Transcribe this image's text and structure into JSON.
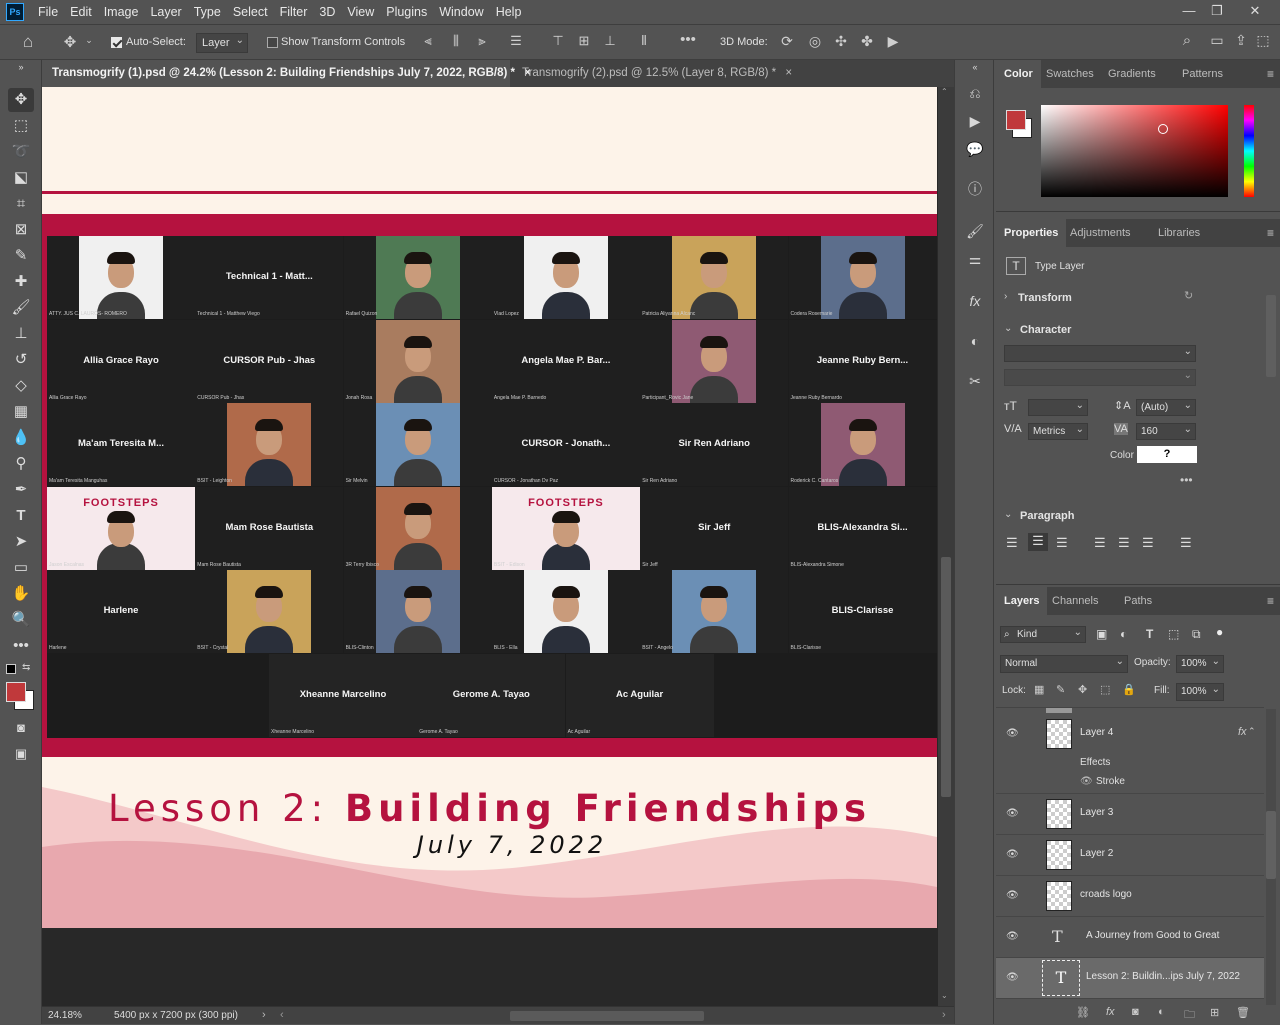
{
  "menubar": {
    "logo": "Ps",
    "items": [
      "File",
      "Edit",
      "Image",
      "Layer",
      "Type",
      "Select",
      "Filter",
      "3D",
      "View",
      "Plugins",
      "Window",
      "Help"
    ]
  },
  "options": {
    "auto_select_label": "Auto-Select:",
    "auto_select_value": "Layer",
    "transform_label": "Show Transform Controls",
    "mode_3d_label": "3D Mode:"
  },
  "tabs": [
    {
      "label": "Transmogrify (1).psd @ 24.2% (Lesson 2: Building Friendships July 7, 2022, RGB/8) *",
      "close": "×"
    },
    {
      "label": "Transmogrify (2).psd @ 12.5% (Layer 8, RGB/8) *",
      "close": "×"
    }
  ],
  "document": {
    "title_part1": "Lesson 2: ",
    "title_part2": "Building Friendships",
    "date": "July 7, 2022",
    "accent_color": "#b5123f",
    "tiles": [
      {
        "name": "",
        "cap": "ATTY. JUS C. LAUROS- ROMERO",
        "kind": "photo"
      },
      {
        "name": "Technical 1 - Matt...",
        "cap": "Technical 1 - Matthew Viego",
        "kind": "text"
      },
      {
        "name": "",
        "cap": "Rafael Quizon",
        "kind": "photo"
      },
      {
        "name": "",
        "cap": "Vlad Lopez",
        "kind": "photo"
      },
      {
        "name": "",
        "cap": "Patricia Aliyanna Alcanc",
        "kind": "photo"
      },
      {
        "name": "",
        "cap": "Codera Rosemarie",
        "kind": "photo"
      },
      {
        "name": "Allia Grace Rayo",
        "cap": "Allia Grace Rayo",
        "kind": "text"
      },
      {
        "name": "CURSOR Pub - Jhas",
        "cap": "CURSOR Pub - Jhas",
        "kind": "text"
      },
      {
        "name": "",
        "cap": "Jonah Rosa",
        "kind": "photo"
      },
      {
        "name": "Angela Mae P. Bar...",
        "cap": "Angela Mae P. Barnedo",
        "kind": "text"
      },
      {
        "name": "",
        "cap": "Participant_Rovic Jane",
        "kind": "photo"
      },
      {
        "name": "Jeanne Ruby Bern...",
        "cap": "Jeanne Ruby Bernardo",
        "kind": "text"
      },
      {
        "name": "Ma'am Teresita M...",
        "cap": "Ma'am Teresita Manguhas",
        "kind": "text"
      },
      {
        "name": "",
        "cap": "BSIT - Leighton",
        "kind": "photo"
      },
      {
        "name": "",
        "cap": "Sir Melvin",
        "kind": "photo"
      },
      {
        "name": "CURSOR - Jonath...",
        "cap": "CURSOR - Jonathan Dv Paz",
        "kind": "text"
      },
      {
        "name": "Sir Ren Adriano",
        "cap": "Sir Ren Adriano",
        "kind": "text"
      },
      {
        "name": "",
        "cap": "Roderick C. Cantaros",
        "kind": "photo"
      },
      {
        "name": "",
        "cap": "Jason Escalnas",
        "kind": "photo"
      },
      {
        "name": "Mam Rose Bautista",
        "cap": "Mam Rose Bautista",
        "kind": "text"
      },
      {
        "name": "",
        "cap": "3R Terry Ibisco",
        "kind": "photo"
      },
      {
        "name": "",
        "cap": "BSIT - Edison",
        "kind": "photo"
      },
      {
        "name": "Sir Jeff",
        "cap": "Sir Jeff",
        "kind": "text"
      },
      {
        "name": "BLIS-Alexandra Si...",
        "cap": "BLIS-Alexandra Simone",
        "kind": "text"
      },
      {
        "name": "Harlene",
        "cap": "Harlene",
        "kind": "text"
      },
      {
        "name": "",
        "cap": "BSIT - Crystal",
        "kind": "photo"
      },
      {
        "name": "",
        "cap": "BLIS-Clinton",
        "kind": "photo"
      },
      {
        "name": "",
        "cap": "BLIS - Ella",
        "kind": "photo"
      },
      {
        "name": "",
        "cap": "BSIT - Angelo",
        "kind": "photo"
      },
      {
        "name": "BLIS-Clarisse",
        "cap": "BLIS-Clarisse",
        "kind": "text"
      },
      {
        "name": "Xheanne Marcelino",
        "cap": "Xheanne Marcelino",
        "kind": "text"
      },
      {
        "name": "Gerome A. Tayao",
        "cap": "Gerome A. Tayao",
        "kind": "text"
      },
      {
        "name": "Ac Aguilar",
        "cap": "Ac Aguilar",
        "kind": "text"
      }
    ],
    "footsteps_label": "FOOTSTEPS"
  },
  "status": {
    "zoom": "24.18%",
    "doc_size": "5400 px x 7200 px (300 ppi)"
  },
  "color_panel": {
    "tabs": [
      "Color",
      "Swatches",
      "Gradients",
      "Patterns"
    ],
    "fg_color": "#c0393b"
  },
  "properties_panel": {
    "tabs": [
      "Properties",
      "Adjustments",
      "Libraries"
    ],
    "type_label": "Type Layer",
    "transform": "Transform",
    "character": "Character",
    "leading": "(Auto)",
    "kerning": "Metrics",
    "tracking": "160",
    "color_label": "Color",
    "color_value": "?",
    "paragraph": "Paragraph"
  },
  "layers_panel": {
    "tabs": [
      "Layers",
      "Channels",
      "Paths"
    ],
    "filter_kind": "Kind",
    "blend_mode": "Normal",
    "opacity_label": "Opacity:",
    "opacity_value": "100%",
    "lock_label": "Lock:",
    "fill_label": "Fill:",
    "fill_value": "100%",
    "layers": [
      {
        "name": "Layer 4",
        "type": "pixel",
        "fx": "fx"
      },
      {
        "name": "Layer 3",
        "type": "pixel"
      },
      {
        "name": "Layer 2",
        "type": "pixel"
      },
      {
        "name": "croads logo",
        "type": "pixel"
      },
      {
        "name": "A Journey from Good to Great",
        "type": "text"
      },
      {
        "name": "Lesson 2: Buildin...ips July 7, 2022",
        "type": "text"
      }
    ],
    "effects_label": "Effects",
    "stroke_label": "Stroke"
  }
}
